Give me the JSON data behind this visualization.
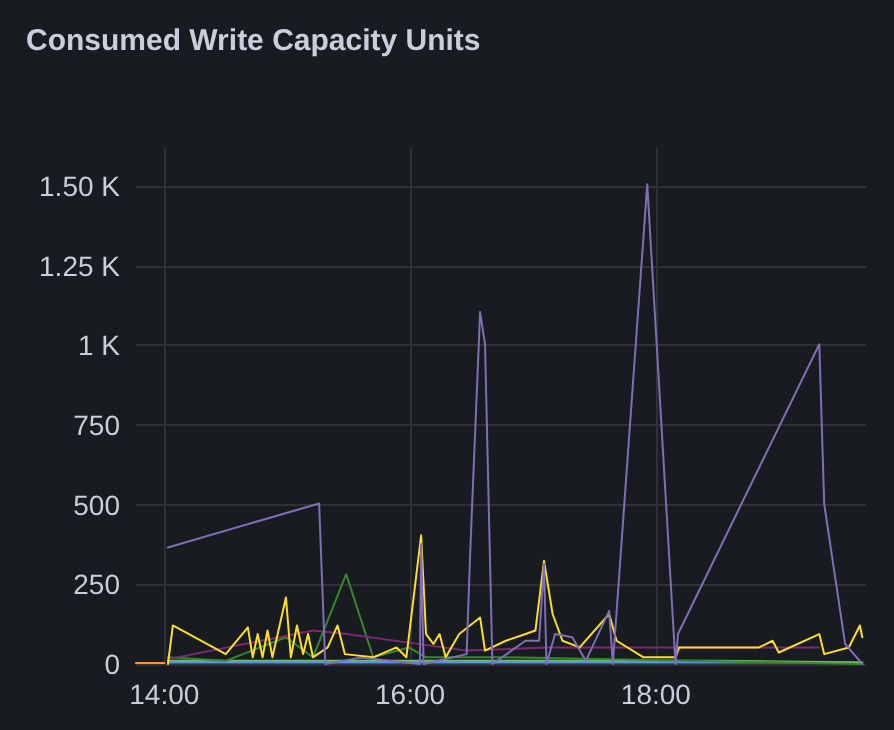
{
  "chart_data": {
    "type": "line",
    "title": "Consumed Write Capacity Units",
    "xlim": [
      13.77,
      19.71
    ],
    "xticks": [
      {
        "value": 14,
        "label": "14:00"
      },
      {
        "value": 16,
        "label": "16:00"
      },
      {
        "value": 18,
        "label": "18:00"
      }
    ],
    "ylim": [
      0,
      1620
    ],
    "yticks": [
      0,
      250,
      500,
      750,
      {
        "value": 1000,
        "label": "1 K"
      },
      {
        "value": 1250,
        "label": "1.25 K"
      },
      {
        "value": 1500,
        "label": "1.50 K"
      }
    ],
    "grid": true,
    "marker": "none",
    "line_style": "solid",
    "series": [
      {
        "color": "#ff9830",
        "x": [
          13.77,
          14.0
        ],
        "values": [
          3,
          3
        ]
      },
      {
        "color": "#5794f2",
        "x": [
          14.03,
          15.5,
          17.0,
          18.5,
          19.68
        ],
        "values": [
          5,
          5,
          5,
          5,
          5
        ]
      },
      {
        "color": "#73bf69",
        "x": [
          14.03,
          15.5,
          17.0,
          18.5,
          19.68
        ],
        "values": [
          10,
          10,
          10,
          10,
          5
        ]
      },
      {
        "color": "#37872d",
        "x": [
          14.03,
          14.5,
          14.99,
          15.21,
          15.48,
          15.7,
          15.99,
          16.13,
          16.78,
          19.68
        ],
        "values": [
          21,
          10,
          84,
          21,
          282,
          21,
          52,
          21,
          21,
          0
        ]
      },
      {
        "color": "#7a2a72",
        "x": [
          14.03,
          15.21,
          15.48,
          16.46,
          17.11,
          19.33
        ],
        "values": [
          15,
          105,
          94,
          42,
          52,
          52
        ]
      },
      {
        "color": "#fade2a",
        "x": [
          14.03,
          14.07,
          14.5,
          14.68,
          14.72,
          14.76,
          14.8,
          14.84,
          14.88,
          14.99,
          15.03,
          15.08,
          15.13,
          15.17,
          15.21,
          15.33,
          15.41,
          15.47,
          15.7,
          15.89,
          15.97,
          16.09,
          16.13,
          16.19,
          16.24,
          16.29,
          16.4,
          16.57,
          16.61,
          16.78,
          16.94,
          17.02,
          17.09,
          17.16,
          17.24,
          17.38,
          17.62,
          17.68,
          17.9,
          18.16,
          18.19,
          18.84,
          18.95,
          19.0,
          19.33,
          19.37,
          19.57,
          19.66,
          19.68
        ],
        "values": [
          0,
          121,
          31,
          115,
          21,
          94,
          21,
          105,
          21,
          209,
          21,
          121,
          31,
          94,
          21,
          52,
          121,
          31,
          21,
          52,
          21,
          404,
          94,
          63,
          94,
          21,
          94,
          146,
          42,
          73,
          94,
          105,
          324,
          157,
          73,
          52,
          157,
          73,
          21,
          21,
          52,
          52,
          73,
          36,
          94,
          31,
          52,
          121,
          84
        ]
      },
      {
        "color": "#806eb7",
        "x": [
          14.03,
          15.26,
          15.31,
          15.6,
          16.08,
          16.09,
          16.11,
          16.46,
          16.49,
          16.57,
          16.61,
          16.67,
          16.94,
          17.05,
          17.09,
          17.11,
          17.18,
          17.32,
          17.43,
          17.62,
          17.65,
          17.93,
          18.16,
          18.18,
          19.33,
          19.37,
          19.54,
          19.68
        ],
        "values": [
          366,
          504,
          0,
          20,
          0,
          377,
          0,
          31,
          356,
          1105,
          1004,
          0,
          73,
          73,
          314,
          0,
          94,
          84,
          10,
          167,
          0,
          1506,
          0,
          94,
          1004,
          502,
          63,
          0
        ]
      }
    ]
  }
}
